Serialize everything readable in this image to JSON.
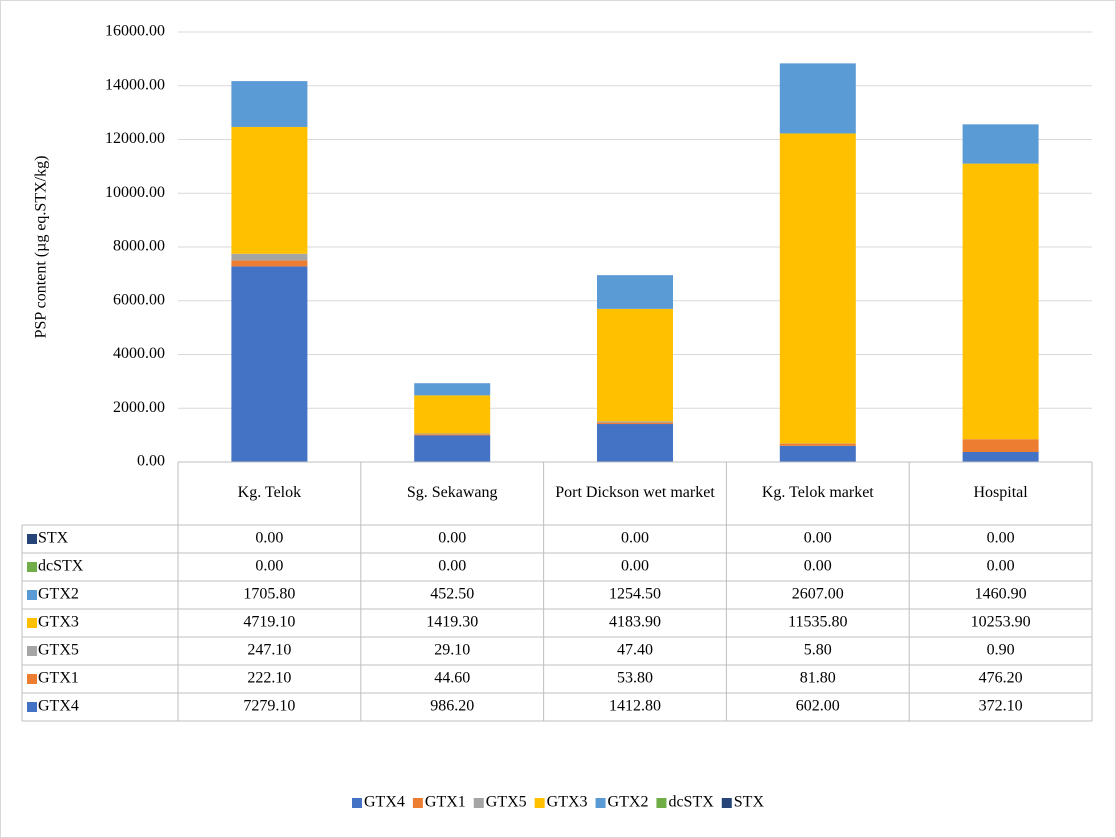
{
  "chart_data": {
    "type": "bar",
    "stacked": true,
    "y_label": "PSP content (µg eq.STX/kg)",
    "categories": [
      "Kg. Telok",
      "Sg. Sekawang",
      "Port Dickson wet market",
      "Kg. Telok market",
      "Hospital"
    ],
    "series": [
      {
        "name": "GTX4",
        "color": "#4472c4",
        "values": [
          7279.1,
          986.2,
          1412.8,
          602,
          372.1
        ],
        "value_labels": [
          "7279.10",
          "986.20",
          "1412.80",
          "602.00",
          "372.10"
        ]
      },
      {
        "name": "GTX1",
        "color": "#ed7d31",
        "values": [
          222.1,
          44.6,
          53.8,
          81.8,
          476.2
        ],
        "value_labels": [
          "222.10",
          "44.60",
          "53.80",
          "81.80",
          "476.20"
        ]
      },
      {
        "name": "GTX5",
        "color": "#a5a5a5",
        "values": [
          247.1,
          29.1,
          47.4,
          5.8,
          0.9
        ],
        "value_labels": [
          "247.10",
          "29.10",
          "47.40",
          "5.80",
          "0.90"
        ]
      },
      {
        "name": "GTX3",
        "color": "#ffc000",
        "values": [
          4719.1,
          1419.3,
          4183.9,
          11535.8,
          10253.9
        ],
        "value_labels": [
          "4719.10",
          "1419.30",
          "4183.90",
          "11535.80",
          "10253.90"
        ]
      },
      {
        "name": "GTX2",
        "color": "#5b9bd5",
        "values": [
          1705.8,
          452.5,
          1254.5,
          2607,
          1460.9
        ],
        "value_labels": [
          "1705.80",
          "452.50",
          "1254.50",
          "2607.00",
          "1460.90"
        ]
      },
      {
        "name": "dcSTX",
        "color": "#70ad47",
        "values": [
          0,
          0,
          0,
          0,
          0
        ],
        "value_labels": [
          "0.00",
          "0.00",
          "0.00",
          "0.00",
          "0.00"
        ]
      },
      {
        "name": "STX",
        "color": "#264478",
        "values": [
          0,
          0,
          0,
          0,
          0
        ],
        "value_labels": [
          "0.00",
          "0.00",
          "0.00",
          "0.00",
          "0.00"
        ]
      }
    ],
    "ylim": [
      0,
      16000
    ],
    "yticks": [
      {
        "value": 0,
        "label": "0.00"
      },
      {
        "value": 2000,
        "label": "2000.00"
      },
      {
        "value": 4000,
        "label": "4000.00"
      },
      {
        "value": 6000,
        "label": "6000.00"
      },
      {
        "value": 8000,
        "label": "8000.00"
      },
      {
        "value": 10000,
        "label": "10000.00"
      },
      {
        "value": 12000,
        "label": "12000.00"
      },
      {
        "value": 14000,
        "label": "14000.00"
      },
      {
        "value": 16000,
        "label": "16000.00"
      }
    ],
    "grid": true,
    "legend": "bottom",
    "data_table": true
  }
}
